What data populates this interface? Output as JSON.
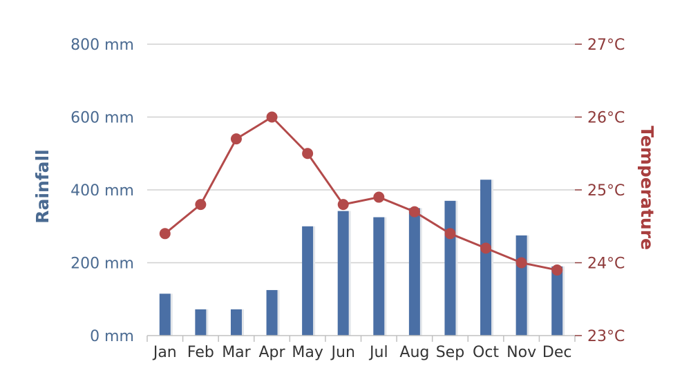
{
  "chart_data": {
    "type": "bar+line",
    "categories": [
      "Jan",
      "Feb",
      "Mar",
      "Apr",
      "May",
      "Jun",
      "Jul",
      "Aug",
      "Sep",
      "Oct",
      "Nov",
      "Dec"
    ],
    "series": [
      {
        "name": "Rainfall",
        "type": "bar",
        "axis": "left",
        "unit": "mm",
        "color": "#4a6fa5",
        "values": [
          115,
          72,
          72,
          125,
          300,
          342,
          325,
          350,
          370,
          428,
          275,
          190
        ]
      },
      {
        "name": "Temperature",
        "type": "line",
        "axis": "right",
        "unit": "°C",
        "color": "#b34a4a",
        "values": [
          24.4,
          24.8,
          25.7,
          26.0,
          25.5,
          24.8,
          24.9,
          24.7,
          24.4,
          24.2,
          24.0,
          23.9
        ]
      }
    ],
    "y_left": {
      "label": "Rainfall",
      "ticks": [
        "0 mm",
        "200 mm",
        "400 mm",
        "600 mm",
        "800 mm"
      ],
      "range": [
        0,
        800
      ],
      "color": "#4a6a91"
    },
    "y_right": {
      "label": "Temperature",
      "ticks": [
        "23°C",
        "24°C",
        "25°C",
        "26°C",
        "27°C"
      ],
      "range": [
        23,
        27
      ],
      "color": "#8e3a3a"
    },
    "grid": true,
    "legend": "none"
  }
}
